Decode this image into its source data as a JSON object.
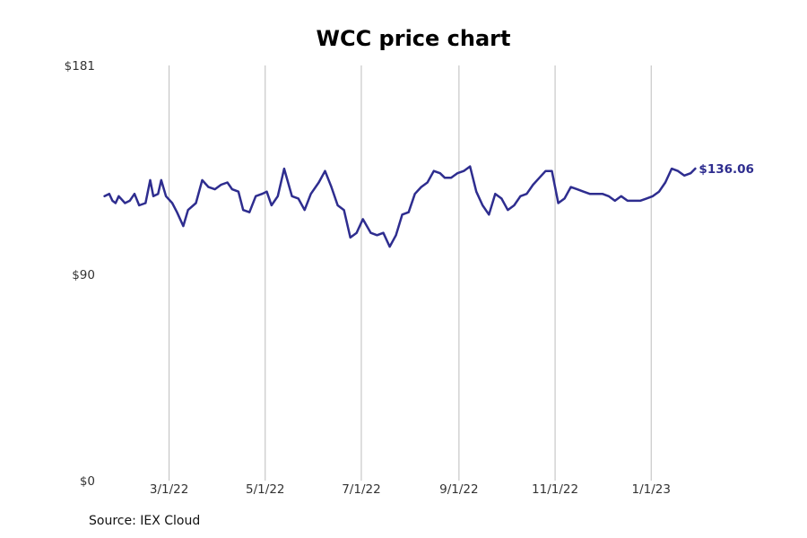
{
  "chart_data": {
    "type": "line",
    "title": "WCC price chart",
    "xlabel": "",
    "ylabel": "",
    "y_ticks": [
      {
        "value": 0,
        "label": "$0"
      },
      {
        "value": 90,
        "label": "$90"
      },
      {
        "value": 181,
        "label": "$181"
      }
    ],
    "ylim": [
      0,
      181
    ],
    "x_ticks": [
      {
        "date": "2022-03-01",
        "label": "3/1/22"
      },
      {
        "date": "2022-05-01",
        "label": "5/1/22"
      },
      {
        "date": "2022-07-01",
        "label": "7/1/22"
      },
      {
        "date": "2022-09-01",
        "label": "9/1/22"
      },
      {
        "date": "2022-11-01",
        "label": "11/1/22"
      },
      {
        "date": "2023-01-01",
        "label": "1/1/23"
      }
    ],
    "xlim": [
      "2022-01-09",
      "2023-03-17"
    ],
    "grid": "vertical",
    "series": [
      {
        "color": "#2e2d8f",
        "points": [
          [
            "2022-01-19",
            124
          ],
          [
            "2022-01-22",
            125
          ],
          [
            "2022-01-24",
            122
          ],
          [
            "2022-01-26",
            121
          ],
          [
            "2022-01-28",
            124
          ],
          [
            "2022-02-01",
            121
          ],
          [
            "2022-02-04",
            122
          ],
          [
            "2022-02-07",
            125
          ],
          [
            "2022-02-10",
            120
          ],
          [
            "2022-02-14",
            121
          ],
          [
            "2022-02-17",
            131
          ],
          [
            "2022-02-19",
            124
          ],
          [
            "2022-02-22",
            125
          ],
          [
            "2022-02-24",
            131
          ],
          [
            "2022-02-27",
            124
          ],
          [
            "2022-03-03",
            121
          ],
          [
            "2022-03-06",
            117
          ],
          [
            "2022-03-10",
            111
          ],
          [
            "2022-03-13",
            118
          ],
          [
            "2022-03-18",
            121
          ],
          [
            "2022-03-22",
            131
          ],
          [
            "2022-03-26",
            128
          ],
          [
            "2022-03-30",
            127
          ],
          [
            "2022-04-03",
            129
          ],
          [
            "2022-04-07",
            130
          ],
          [
            "2022-04-10",
            127
          ],
          [
            "2022-04-14",
            126
          ],
          [
            "2022-04-17",
            118
          ],
          [
            "2022-04-21",
            117
          ],
          [
            "2022-04-25",
            124
          ],
          [
            "2022-04-29",
            125
          ],
          [
            "2022-05-02",
            126
          ],
          [
            "2022-05-05",
            120
          ],
          [
            "2022-05-09",
            124
          ],
          [
            "2022-05-13",
            136
          ],
          [
            "2022-05-18",
            124
          ],
          [
            "2022-05-22",
            123
          ],
          [
            "2022-05-26",
            118
          ],
          [
            "2022-05-30",
            125
          ],
          [
            "2022-06-04",
            130
          ],
          [
            "2022-06-08",
            135
          ],
          [
            "2022-06-12",
            128
          ],
          [
            "2022-06-16",
            120
          ],
          [
            "2022-06-20",
            118
          ],
          [
            "2022-06-24",
            106
          ],
          [
            "2022-06-28",
            108
          ],
          [
            "2022-07-02",
            114
          ],
          [
            "2022-07-07",
            108
          ],
          [
            "2022-07-11",
            107
          ],
          [
            "2022-07-15",
            108
          ],
          [
            "2022-07-19",
            102
          ],
          [
            "2022-07-23",
            107
          ],
          [
            "2022-07-27",
            116
          ],
          [
            "2022-07-31",
            117
          ],
          [
            "2022-08-04",
            125
          ],
          [
            "2022-08-08",
            128
          ],
          [
            "2022-08-12",
            130
          ],
          [
            "2022-08-16",
            135
          ],
          [
            "2022-08-20",
            134
          ],
          [
            "2022-08-23",
            132
          ],
          [
            "2022-08-27",
            132
          ],
          [
            "2022-08-31",
            134
          ],
          [
            "2022-09-04",
            135
          ],
          [
            "2022-09-08",
            137
          ],
          [
            "2022-09-12",
            126
          ],
          [
            "2022-09-16",
            120
          ],
          [
            "2022-09-20",
            116
          ],
          [
            "2022-09-24",
            125
          ],
          [
            "2022-09-28",
            123
          ],
          [
            "2022-10-02",
            118
          ],
          [
            "2022-10-06",
            120
          ],
          [
            "2022-10-10",
            124
          ],
          [
            "2022-10-14",
            125
          ],
          [
            "2022-10-18",
            129
          ],
          [
            "2022-10-22",
            132
          ],
          [
            "2022-10-26",
            135
          ],
          [
            "2022-10-30",
            135
          ],
          [
            "2022-11-03",
            121
          ],
          [
            "2022-11-07",
            123
          ],
          [
            "2022-11-11",
            128
          ],
          [
            "2022-11-15",
            127
          ],
          [
            "2022-11-19",
            126
          ],
          [
            "2022-11-23",
            125
          ],
          [
            "2022-11-27",
            125
          ],
          [
            "2022-12-01",
            125
          ],
          [
            "2022-12-05",
            124
          ],
          [
            "2022-12-09",
            122
          ],
          [
            "2022-12-13",
            124
          ],
          [
            "2022-12-17",
            122
          ],
          [
            "2022-12-21",
            122
          ],
          [
            "2022-12-25",
            122
          ],
          [
            "2022-12-29",
            123
          ],
          [
            "2023-01-02",
            124
          ],
          [
            "2023-01-06",
            126
          ],
          [
            "2023-01-10",
            130
          ],
          [
            "2023-01-14",
            136
          ],
          [
            "2023-01-18",
            135
          ],
          [
            "2023-01-22",
            133
          ],
          [
            "2023-01-26",
            134
          ],
          [
            "2023-01-29",
            136.06
          ]
        ]
      }
    ],
    "last_value_label": "$136.06",
    "source": "Source: IEX Cloud"
  }
}
